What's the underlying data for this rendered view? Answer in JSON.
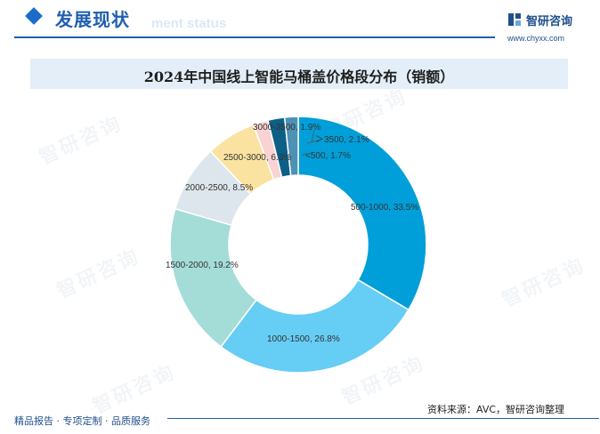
{
  "header": {
    "title": "发展现状",
    "subtitle": "ment status",
    "brand_name": "智研咨询",
    "brand_url": "www.chyxx.com"
  },
  "watermark": {
    "text": "智研咨询"
  },
  "footer": {
    "left": "精品报告 · 专项定制 · 品质服务",
    "source": "资料来源：AVC，智研咨询整理"
  },
  "colors": {
    "accent": "#1f5fb0",
    "title_band": "#e3eef8"
  },
  "chart_data": {
    "type": "pie",
    "style": "donut",
    "title": "2024年中国线上智能马桶盖价格段分布（销额）",
    "unit": "%",
    "slices": [
      {
        "category": "500-1000",
        "value": 33.5,
        "label": "500-1000, 33.5%",
        "color": "#009fd9"
      },
      {
        "category": "1000-1500",
        "value": 26.8,
        "label": "1000-1500, 26.8%",
        "color": "#66cdf5"
      },
      {
        "category": "1500-2000",
        "value": 19.2,
        "label": "1500-2000, 19.2%",
        "color": "#a4dcd8"
      },
      {
        "category": "2000-2500",
        "value": 8.5,
        "label": "2000-2500, 8.5%",
        "color": "#dde6ec"
      },
      {
        "category": "2500-3000",
        "value": 6.3,
        "label": "2500-3000, 6.3%",
        "color": "#fae3a0"
      },
      {
        "category": "3000-3500",
        "value": 1.9,
        "label": "3000-3500, 1.9%",
        "color": "#f9d2d2"
      },
      {
        "category": "＞3500",
        "value": 2.1,
        "label": "＞3500, 2.1%",
        "color": "#0e5f86"
      },
      {
        "category": "<500",
        "value": 1.7,
        "label": "<500, 1.7%",
        "color": "#4d91b4"
      }
    ]
  }
}
